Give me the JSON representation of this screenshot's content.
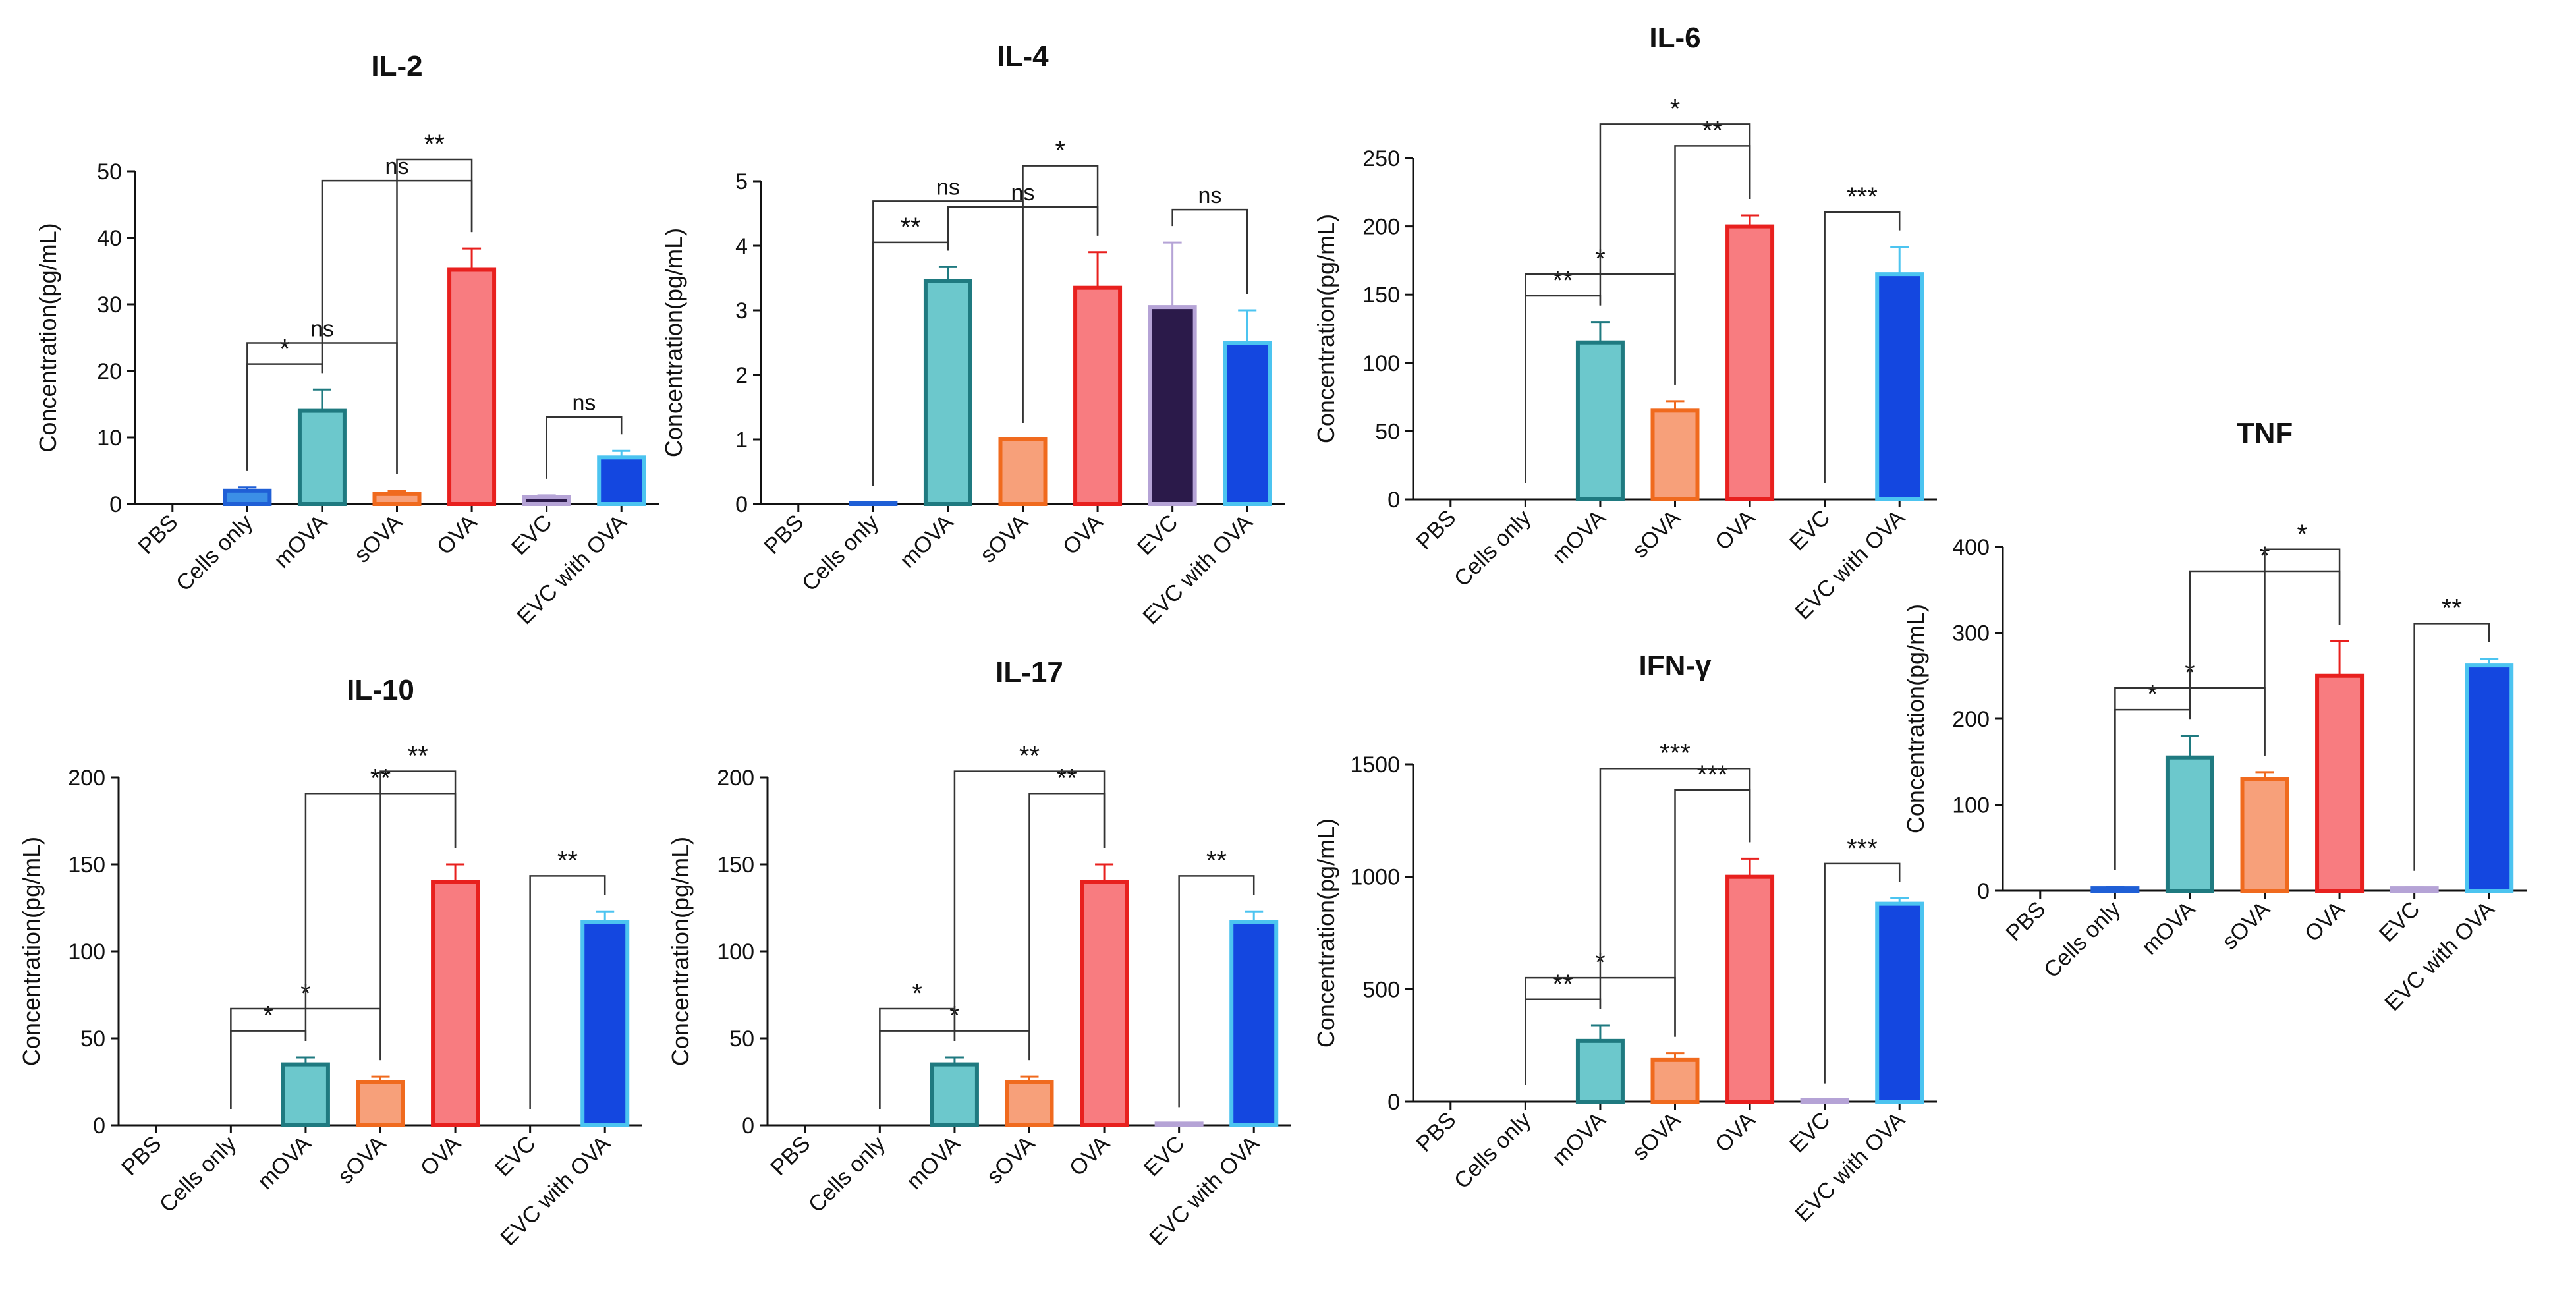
{
  "chart_data": [
    {
      "id": "il2",
      "type": "bar",
      "title": "IL-2",
      "ylabel": "Concentration(pg/mL)",
      "ylim": [
        0,
        50
      ],
      "yticks": [
        "0",
        "10",
        "20",
        "30",
        "40",
        "50"
      ],
      "categories": [
        "PBS",
        "Cells only",
        "mOVA",
        "sOVA",
        "OVA",
        "EVC",
        "EVC with OVA"
      ],
      "values": [
        0,
        2,
        14,
        1.5,
        35.2,
        1,
        7
      ],
      "errors": [
        0,
        0.5,
        3.2,
        0.5,
        3.2,
        0.3,
        1
      ],
      "significance": [
        {
          "from": 1,
          "to": 2,
          "label": "*",
          "level": 0,
          "drop": [
            0,
            0
          ]
        },
        {
          "from": 1,
          "to": 3,
          "label": "ns",
          "level": 1,
          "drop": [
            0,
            0
          ]
        },
        {
          "from": 2,
          "to": 4,
          "label": "ns",
          "level": 2,
          "drop": [
            0,
            0
          ]
        },
        {
          "from": 3,
          "to": 4,
          "label": "**",
          "level": 3,
          "drop": [
            0,
            0
          ]
        },
        {
          "from": 5,
          "to": 6,
          "label": "ns",
          "level": 0,
          "drop": [
            0,
            0
          ]
        }
      ]
    },
    {
      "id": "il4",
      "type": "bar",
      "title": "IL-4",
      "ylabel": "Concentration(pg/mL)",
      "ylim": [
        0,
        5
      ],
      "yticks": [
        "0",
        "1",
        "2",
        "3",
        "4",
        "5"
      ],
      "categories": [
        "PBS",
        "Cells only",
        "mOVA",
        "sOVA",
        "OVA",
        "EVC",
        "EVC with OVA"
      ],
      "values": [
        0,
        0.02,
        3.45,
        1,
        3.35,
        3.05,
        2.5
      ],
      "errors": [
        0,
        0.01,
        0.22,
        0,
        0.55,
        1.0,
        0.5
      ],
      "significance": [
        {
          "from": 1,
          "to": 2,
          "label": "**",
          "level": 0
        },
        {
          "from": 2,
          "to": 4,
          "label": "ns",
          "level": 1
        },
        {
          "from": 1,
          "to": 3,
          "label": "ns",
          "level": 2
        },
        {
          "from": 3,
          "to": 4,
          "label": "*",
          "level": 3
        },
        {
          "from": 5,
          "to": 6,
          "label": "ns",
          "level": 0
        }
      ]
    },
    {
      "id": "il6",
      "type": "bar",
      "title": "IL-6",
      "ylabel": "Concentration(pg/mL)",
      "ylim": [
        0,
        250
      ],
      "yticks": [
        "0",
        "50",
        "100",
        "150",
        "200",
        "250"
      ],
      "categories": [
        "PBS",
        "Cells only",
        "mOVA",
        "sOVA",
        "OVA",
        "EVC",
        "EVC with OVA"
      ],
      "values": [
        0,
        0,
        115,
        65,
        200,
        0,
        165
      ],
      "errors": [
        0,
        0,
        15,
        7,
        8,
        0,
        20
      ],
      "significance": [
        {
          "from": 1,
          "to": 2,
          "label": "**",
          "level": 0
        },
        {
          "from": 1,
          "to": 3,
          "label": "*",
          "level": 1
        },
        {
          "from": 3,
          "to": 4,
          "label": "**",
          "level": 2
        },
        {
          "from": 2,
          "to": 4,
          "label": "*",
          "level": 3
        },
        {
          "from": 5,
          "to": 6,
          "label": "***",
          "level": 0
        }
      ]
    },
    {
      "id": "tnf",
      "type": "bar",
      "title": "TNF",
      "ylabel": "Concentration(pg/mL)",
      "ylim": [
        0,
        400
      ],
      "yticks": [
        "0",
        "100",
        "200",
        "300",
        "400"
      ],
      "categories": [
        "PBS",
        "Cells only",
        "mOVA",
        "sOVA",
        "OVA",
        "EVC",
        "EVC with OVA"
      ],
      "values": [
        0,
        3,
        155,
        130,
        250,
        3,
        262
      ],
      "errors": [
        0,
        2,
        25,
        8,
        40,
        1,
        8
      ],
      "significance": [
        {
          "from": 1,
          "to": 2,
          "label": "*",
          "level": 0
        },
        {
          "from": 1,
          "to": 3,
          "label": "*",
          "level": 1
        },
        {
          "from": 2,
          "to": 4,
          "label": "*",
          "level": 2
        },
        {
          "from": 3,
          "to": 4,
          "label": "*",
          "level": 3
        },
        {
          "from": 5,
          "to": 6,
          "label": "**",
          "level": 0
        }
      ]
    },
    {
      "id": "il10",
      "type": "bar",
      "title": "IL-10",
      "ylabel": "Concentration(pg/mL)",
      "ylim": [
        0,
        200
      ],
      "yticks": [
        "0",
        "50",
        "100",
        "150",
        "200"
      ],
      "categories": [
        "PBS",
        "Cells only",
        "mOVA",
        "sOVA",
        "OVA",
        "EVC",
        "EVC with OVA"
      ],
      "values": [
        0,
        0,
        35,
        25,
        140,
        0,
        117
      ],
      "errors": [
        0,
        0,
        4,
        3,
        10,
        0,
        6
      ],
      "significance": [
        {
          "from": 1,
          "to": 2,
          "label": "*",
          "level": 0
        },
        {
          "from": 1,
          "to": 3,
          "label": "*",
          "level": 1
        },
        {
          "from": 2,
          "to": 4,
          "label": "**",
          "level": 2
        },
        {
          "from": 3,
          "to": 4,
          "label": "**",
          "level": 3
        },
        {
          "from": 5,
          "to": 6,
          "label": "**",
          "level": 0
        }
      ]
    },
    {
      "id": "il17",
      "type": "bar",
      "title": "IL-17",
      "ylabel": "Concentration(pg/mL)",
      "ylim": [
        0,
        200
      ],
      "yticks": [
        "0",
        "50",
        "100",
        "150",
        "200"
      ],
      "categories": [
        "PBS",
        "Cells only",
        "mOVA",
        "sOVA",
        "OVA",
        "EVC",
        "EVC with OVA"
      ],
      "values": [
        0,
        0,
        35,
        25,
        140,
        1,
        117
      ],
      "errors": [
        0,
        0,
        4,
        3,
        10,
        0,
        6
      ],
      "significance": [
        {
          "from": 1,
          "to": 3,
          "label": "*",
          "level": 0
        },
        {
          "from": 1,
          "to": 2,
          "label": "*",
          "level": 1
        },
        {
          "from": 3,
          "to": 4,
          "label": "**",
          "level": 2
        },
        {
          "from": 2,
          "to": 4,
          "label": "**",
          "level": 3
        },
        {
          "from": 5,
          "to": 6,
          "label": "**",
          "level": 0
        }
      ]
    },
    {
      "id": "ifng",
      "type": "bar",
      "title": "IFN-γ",
      "ylabel": "Concentration(pg/mL)",
      "ylim": [
        0,
        1500
      ],
      "yticks": [
        "0",
        "500",
        "1000",
        "1500"
      ],
      "categories": [
        "PBS",
        "Cells only",
        "mOVA",
        "sOVA",
        "OVA",
        "EVC",
        "EVC with OVA"
      ],
      "values": [
        0,
        0,
        270,
        185,
        1000,
        5,
        880
      ],
      "errors": [
        0,
        0,
        70,
        30,
        80,
        2,
        25
      ],
      "significance": [
        {
          "from": 1,
          "to": 2,
          "label": "**",
          "level": 0
        },
        {
          "from": 1,
          "to": 3,
          "label": "*",
          "level": 1
        },
        {
          "from": 3,
          "to": 4,
          "label": "***",
          "level": 2
        },
        {
          "from": 2,
          "to": 4,
          "label": "***",
          "level": 3
        },
        {
          "from": 5,
          "to": 6,
          "label": "***",
          "level": 0
        }
      ]
    }
  ],
  "bar_colors": {
    "fill": [
      "#ffffff",
      "#3b8fe6",
      "#6cc8cc",
      "#f7a07a",
      "#f87c80",
      "#2b1a4a",
      "#1447e0"
    ],
    "stroke": [
      "#888888",
      "#1f5fd6",
      "#1f7a80",
      "#f06a1e",
      "#e8201e",
      "#b5a3d6",
      "#4cc4f0"
    ]
  }
}
